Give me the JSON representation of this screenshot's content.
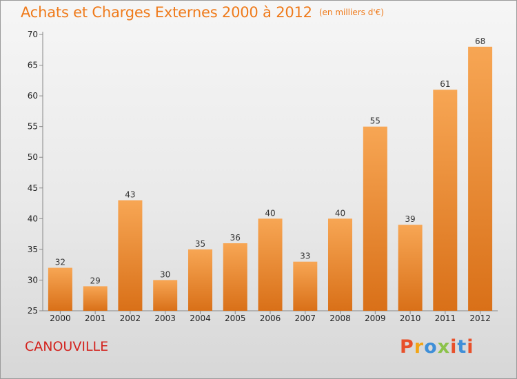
{
  "header": {
    "title": "Achats et Charges Externes 2000 à 2012",
    "subtitle": "(en milliers d'€)"
  },
  "footer": {
    "city": "CANOUVILLE",
    "logo_letters": [
      "P",
      "r",
      "o",
      "x",
      "i",
      "t",
      "i"
    ],
    "logo_colors": [
      "#e8502a",
      "#f2a516",
      "#3f8fd8",
      "#8bc24a",
      "#e8502a",
      "#3f8fd8",
      "#e8502a"
    ]
  },
  "colors": {
    "bar_light": "#f7a654",
    "bar_dark": "#d97018",
    "accent": "#ef7a1a",
    "city": "#d3241f"
  },
  "chart_data": {
    "type": "bar",
    "title": "Achats et Charges Externes 2000 à 2012",
    "subtitle": "(en milliers d'€)",
    "categories": [
      "2000",
      "2001",
      "2002",
      "2003",
      "2004",
      "2005",
      "2006",
      "2007",
      "2008",
      "2009",
      "2010",
      "2011",
      "2012"
    ],
    "values": [
      32,
      29,
      43,
      30,
      35,
      36,
      40,
      33,
      40,
      55,
      39,
      61,
      68
    ],
    "ylim": [
      25,
      70
    ],
    "yticks": [
      25,
      30,
      35,
      40,
      45,
      50,
      55,
      60,
      65,
      70
    ],
    "grid": false,
    "data_labels": true
  }
}
